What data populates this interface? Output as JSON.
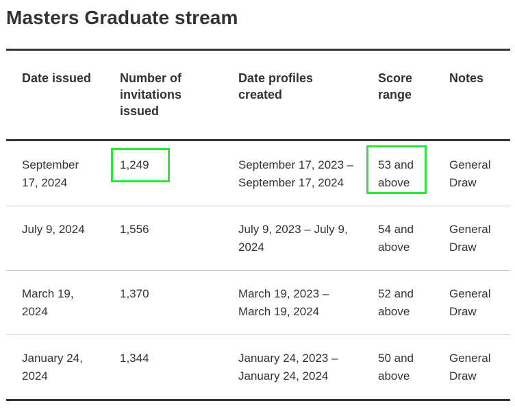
{
  "page": {
    "title": "Masters Graduate stream"
  },
  "table": {
    "headers": {
      "date_issued": "Date issued",
      "invitations": "Number of invitations issued",
      "profiles_created": "Date profiles created",
      "score_range": "Score range",
      "notes": "Notes"
    },
    "rows": [
      {
        "date_issued": "September 17, 2024",
        "invitations": "1,249",
        "profiles_created": "September 17, 2023 – September 17, 2024",
        "score_range": "53 and above",
        "notes": "General Draw"
      },
      {
        "date_issued": "July 9, 2024",
        "invitations": "1,556",
        "profiles_created": "July 9, 2023 – July 9, 2024",
        "score_range": "54 and above",
        "notes": "General Draw"
      },
      {
        "date_issued": "March 19, 2024",
        "invitations": "1,370",
        "profiles_created": "March 19, 2023 – March 19, 2024",
        "score_range": "52 and above",
        "notes": "General Draw"
      },
      {
        "date_issued": "January 24, 2024",
        "invitations": "1,344",
        "profiles_created": "January 24, 2023 – January 24, 2024",
        "score_range": "50 and above",
        "notes": "General Draw"
      }
    ]
  },
  "highlight": {
    "color": "#2ee63a"
  }
}
